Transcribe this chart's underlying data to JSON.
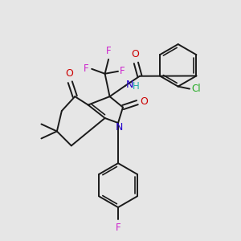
{
  "background_color": "#e6e6e6",
  "bond_color": "#1a1a1a",
  "bond_lw": 1.4,
  "figsize": [
    3.0,
    3.0
  ],
  "dpi": 100,
  "colors": {
    "N": "#2200cc",
    "O": "#cc0000",
    "F": "#cc22cc",
    "Cl": "#22aa22",
    "H": "#22aaaa",
    "C": "#1a1a1a"
  }
}
